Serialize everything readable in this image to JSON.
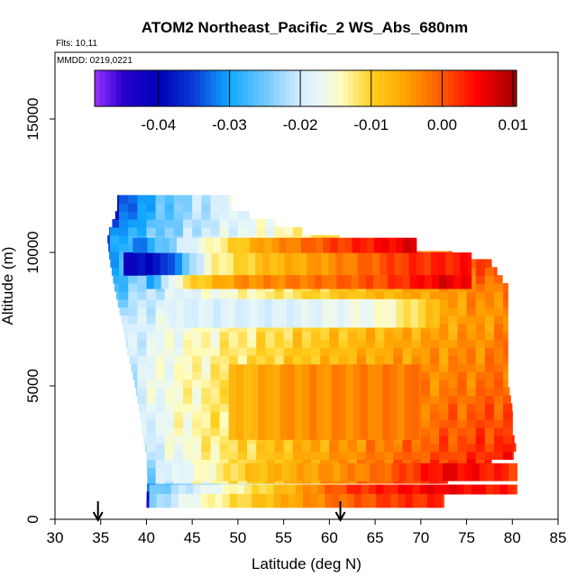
{
  "chart_data": {
    "type": "heatmap",
    "title": "ATOM2 Northeast_Pacific_2 WS_Abs_680nm",
    "flights_label": "Flts: 10,11",
    "dates_label": "MMDD: 0219,0221",
    "xlabel": "Latitude (deg N)",
    "ylabel": "Altitude (m)",
    "xlim": [
      30,
      85
    ],
    "ylim": [
      0,
      17500
    ],
    "x_ticks": [
      30,
      35,
      40,
      45,
      50,
      55,
      60,
      65,
      70,
      75,
      80,
      85
    ],
    "y_ticks": [
      0,
      5000,
      10000,
      15000
    ],
    "colorbar": {
      "min": -0.049,
      "max": 0.0105,
      "ticks": [
        -0.04,
        -0.03,
        -0.02,
        -0.01,
        0.0,
        0.01
      ],
      "tick_labels": [
        "-0.04",
        "-0.03",
        "-0.02",
        "-0.01",
        "0.00",
        "0.01"
      ],
      "stops": [
        {
          "v": -0.049,
          "c": "#9b30ff"
        },
        {
          "v": -0.045,
          "c": "#2a00d0"
        },
        {
          "v": -0.04,
          "c": "#0000b8"
        },
        {
          "v": -0.035,
          "c": "#0a3cd8"
        },
        {
          "v": -0.03,
          "c": "#10a8ff"
        },
        {
          "v": -0.025,
          "c": "#6ec8ff"
        },
        {
          "v": -0.02,
          "c": "#d6eeff"
        },
        {
          "v": -0.017,
          "c": "#eaf8f4"
        },
        {
          "v": -0.014,
          "c": "#fffcb8"
        },
        {
          "v": -0.01,
          "c": "#ffd020"
        },
        {
          "v": -0.005,
          "c": "#ffa000"
        },
        {
          "v": 0.0,
          "c": "#ff5a00"
        },
        {
          "v": 0.005,
          "c": "#ff0000"
        },
        {
          "v": 0.0105,
          "c": "#a00000"
        }
      ]
    },
    "arrows_x": [
      34.7,
      61.2
    ],
    "profiles": [
      {
        "alt": 750,
        "x1": 40.0,
        "x2": 40.3,
        "v1": -0.046,
        "v2": -0.046
      },
      {
        "alt": 1450,
        "x1": 40.1,
        "x2": 72.5,
        "v1": -0.027,
        "v2": 0.003
      },
      {
        "alt": 2450,
        "x1": 40.0,
        "x2": 80.5,
        "v1": -0.024,
        "v2": 0.004
      },
      {
        "alt": 3300,
        "x1": 39.5,
        "x2": 80.0,
        "v1": -0.022,
        "v2": 0.002
      },
      {
        "alt": 4100,
        "x1": 39.2,
        "x2": 80.0,
        "v1": -0.022,
        "v2": 0.001
      },
      {
        "alt": 5100,
        "x1": 38.7,
        "x2": 79.5,
        "v1": -0.021,
        "v2": -0.001
      },
      {
        "alt": 6200,
        "x1": 38.0,
        "x2": 79.5,
        "v1": -0.022,
        "v2": -0.002
      },
      {
        "alt": 7400,
        "x1": 37.3,
        "x2": 79.5,
        "v1": -0.023,
        "v2": -0.004
      },
      {
        "alt": 8700,
        "x1": 36.5,
        "x2": 79.5,
        "v1": -0.029,
        "v2": -0.002
      },
      {
        "alt": 9700,
        "x1": 36.0,
        "x2": 77.5,
        "v1": -0.034,
        "v2": 0.002
      },
      {
        "alt": 10600,
        "x1": 35.7,
        "x2": 59.0,
        "v1": -0.035,
        "v2": -0.012
      },
      {
        "alt": 11600,
        "x1": 36.8,
        "x2": 49.3,
        "v1": -0.04,
        "v2": -0.018
      }
    ],
    "bands": [
      {
        "x1": 40.3,
        "x2": 80.5,
        "y1": 950,
        "y2": 1300,
        "type": "row",
        "pts": [
          [
            40,
            -0.027
          ],
          [
            47,
            -0.017
          ],
          [
            55,
            -0.008
          ],
          [
            62,
            0.002
          ],
          [
            72,
            0.006
          ],
          [
            80.5,
            0.003
          ]
        ]
      },
      {
        "x1": 40.3,
        "x2": 72.5,
        "y1": 450,
        "y2": 950,
        "type": "row",
        "pts": [
          [
            40,
            -0.026
          ],
          [
            45,
            -0.016
          ],
          [
            52,
            -0.009
          ],
          [
            60,
            -0.002
          ],
          [
            67,
            0.002
          ],
          [
            72.5,
            0.003
          ]
        ]
      },
      {
        "x1": 42,
        "x2": 80.5,
        "y1": 1450,
        "y2": 2100,
        "type": "row",
        "pts": [
          [
            42,
            -0.02
          ],
          [
            52,
            -0.008
          ],
          [
            65,
            -0.002
          ],
          [
            73,
            0.006
          ],
          [
            80.5,
            0.002
          ]
        ]
      },
      {
        "x1": 37.5,
        "x2": 75.5,
        "y1": 9150,
        "y2": 10000,
        "type": "row",
        "pts": [
          [
            37.5,
            -0.041
          ],
          [
            42,
            -0.037
          ],
          [
            47,
            -0.014
          ],
          [
            53,
            -0.008
          ],
          [
            60,
            -0.004
          ],
          [
            68,
            0.002
          ],
          [
            75.5,
            0.004
          ]
        ]
      },
      {
        "x1": 40.0,
        "x2": 75.5,
        "y1": 8650,
        "y2": 9150,
        "type": "row",
        "pts": [
          [
            40,
            -0.032
          ],
          [
            44,
            -0.012
          ],
          [
            50,
            -0.004
          ],
          [
            58,
            -0.002
          ],
          [
            66,
            0.001
          ],
          [
            73,
            0.007
          ],
          [
            75.5,
            0.004
          ]
        ]
      },
      {
        "x1": 38.5,
        "x2": 69.5,
        "y1": 10000,
        "y2": 10550,
        "type": "row",
        "pts": [
          [
            38.5,
            -0.034
          ],
          [
            45,
            -0.018
          ],
          [
            52,
            -0.006
          ],
          [
            60,
            0.001
          ],
          [
            69.5,
            0.007
          ]
        ]
      },
      {
        "x1": 42.5,
        "x2": 72.0,
        "y1": 7200,
        "y2": 8250,
        "type": "row",
        "pts": [
          [
            42.5,
            -0.019
          ],
          [
            55,
            -0.019
          ],
          [
            65,
            -0.016
          ],
          [
            72,
            -0.008
          ]
        ]
      },
      {
        "x1": 49.0,
        "x2": 70.0,
        "y1": 3000,
        "y2": 5800,
        "type": "row",
        "pts": [
          [
            49,
            -0.008
          ],
          [
            56,
            -0.004
          ],
          [
            63,
            -0.003
          ],
          [
            70,
            -0.002
          ]
        ]
      }
    ],
    "top_alt": 12100
  }
}
